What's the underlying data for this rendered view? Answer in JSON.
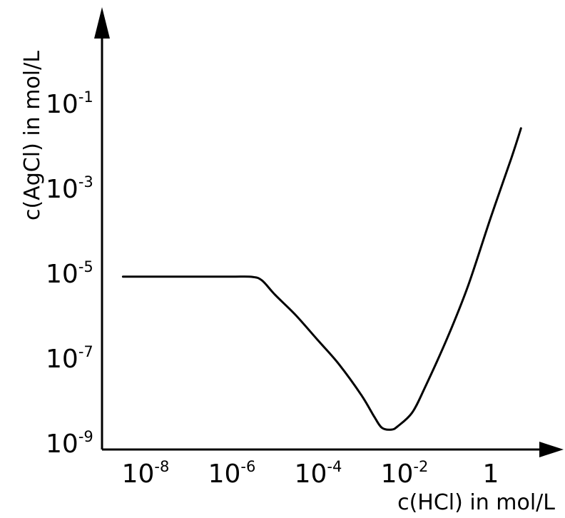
{
  "chart_data": {
    "type": "line",
    "xlabel": "c(HCl) in mol/L",
    "ylabel": "c(AgCl) in mol/L",
    "x_scale": "log",
    "y_scale": "log",
    "xlim": [
      1e-09,
      10
    ],
    "ylim": [
      1e-09,
      1
    ],
    "grid": false,
    "x_ticks": [
      {
        "value": 1e-08,
        "base": "10",
        "exp": "-8"
      },
      {
        "value": 1e-06,
        "base": "10",
        "exp": "-6"
      },
      {
        "value": 0.0001,
        "base": "10",
        "exp": "-4"
      },
      {
        "value": 0.01,
        "base": "10",
        "exp": "-2"
      },
      {
        "value": 1,
        "base": "1",
        "exp": ""
      }
    ],
    "y_ticks": [
      {
        "value": 1e-09,
        "base": "10",
        "exp": "-9"
      },
      {
        "value": 1e-07,
        "base": "10",
        "exp": "-7"
      },
      {
        "value": 1e-05,
        "base": "10",
        "exp": "-5"
      },
      {
        "value": 0.001,
        "base": "10",
        "exp": "-3"
      },
      {
        "value": 0.1,
        "base": "10",
        "exp": "-1"
      }
    ],
    "series": [
      {
        "color": "#000000",
        "points": [
          [
            3e-09,
            8e-06
          ],
          [
            1e-08,
            8e-06
          ],
          [
            1e-07,
            8e-06
          ],
          [
            1e-06,
            8e-06
          ],
          [
            3e-06,
            7.9e-06
          ],
          [
            5e-06,
            6.5e-06
          ],
          [
            1e-05,
            3e-06
          ],
          [
            3e-05,
            1e-06
          ],
          [
            0.0001,
            2.5e-07
          ],
          [
            0.0003,
            7e-08
          ],
          [
            0.001,
            1.3e-08
          ],
          [
            0.002,
            4e-09
          ],
          [
            0.003,
            2.2e-09
          ],
          [
            0.005,
            2e-09
          ],
          [
            0.007,
            2.4e-09
          ],
          [
            0.015,
            5e-09
          ],
          [
            0.03,
            2e-08
          ],
          [
            0.1,
            3e-07
          ],
          [
            0.3,
            5e-06
          ],
          [
            1,
            0.0002
          ],
          [
            3,
            0.005
          ],
          [
            5,
            0.025
          ]
        ]
      }
    ]
  }
}
